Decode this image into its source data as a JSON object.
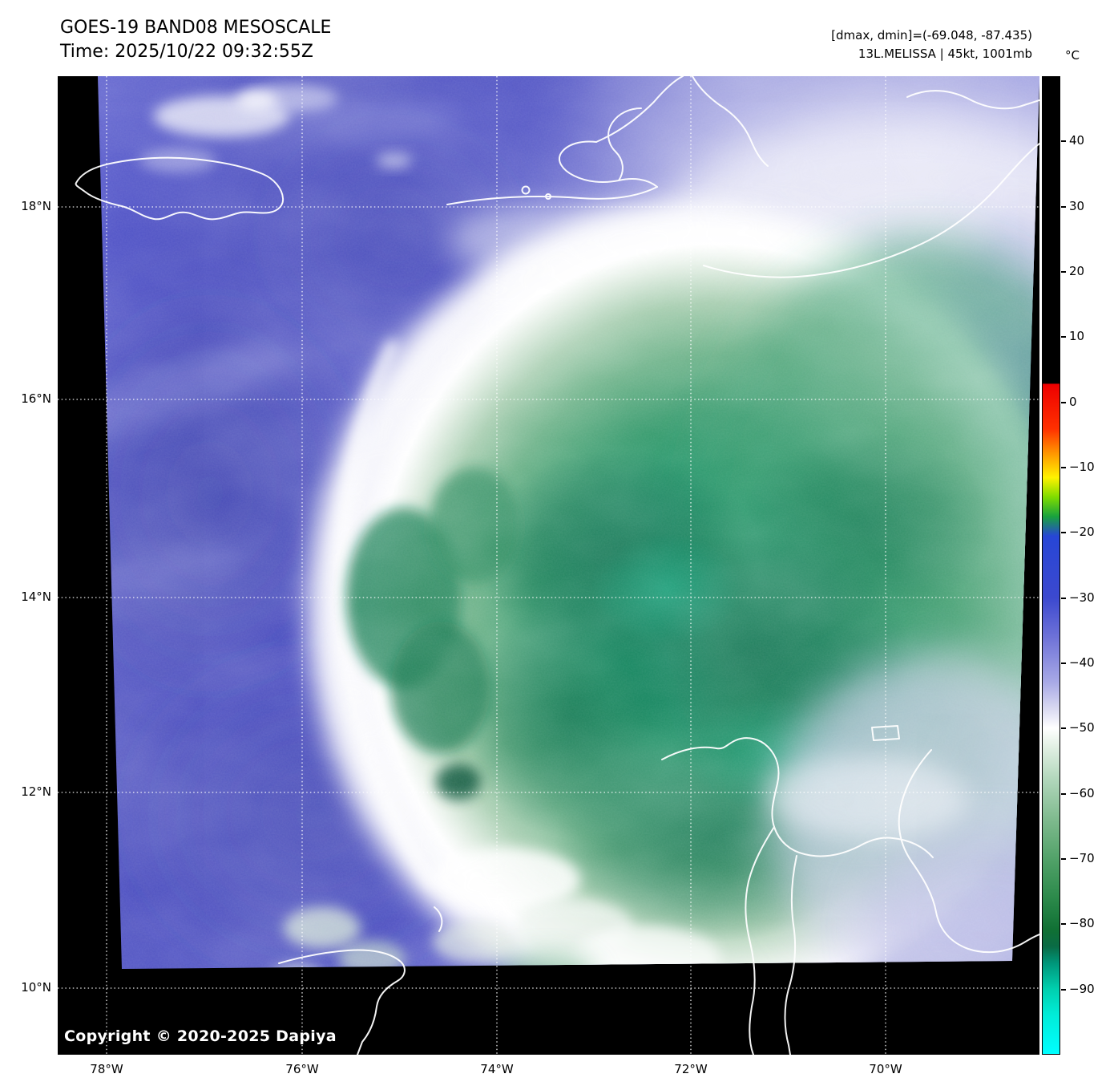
{
  "header": {
    "title": "GOES-19 BAND08 MESOSCALE",
    "time": "Time: 2025/10/22 09:32:55Z",
    "range_note": "[dmax, dmin]=(-69.048, -87.435)",
    "storm_note": "13L.MELISSA | 45kt, 1001mb"
  },
  "footer": {
    "copyright": "Copyright © 2020-2025 Dapiya"
  },
  "axes": {
    "lat_labels": [
      "18°N",
      "16°N",
      "14°N",
      "12°N",
      "10°N"
    ],
    "lon_labels": [
      "78°W",
      "76°W",
      "74°W",
      "72°W",
      "70°W"
    ]
  },
  "colorbar": {
    "unit_label": "°C",
    "domain": [
      50,
      -100
    ],
    "ticks": [
      {
        "label": "40",
        "value": 40
      },
      {
        "label": "30",
        "value": 30
      },
      {
        "label": "20",
        "value": 20
      },
      {
        "label": "10",
        "value": 10
      },
      {
        "label": "0",
        "value": 0
      },
      {
        "label": "−10",
        "value": -10
      },
      {
        "label": "−20",
        "value": -20
      },
      {
        "label": "−30",
        "value": -30
      },
      {
        "label": "−40",
        "value": -40
      },
      {
        "label": "−50",
        "value": -50
      },
      {
        "label": "−60",
        "value": -60
      },
      {
        "label": "−70",
        "value": -70
      },
      {
        "label": "−80",
        "value": -80
      },
      {
        "label": "−90",
        "value": -90
      }
    ],
    "stops": [
      {
        "value": 50,
        "color": "#000000"
      },
      {
        "value": 3,
        "color": "#000000"
      },
      {
        "value": 2.8,
        "color": "#ee0000"
      },
      {
        "value": -4,
        "color": "#ff3000"
      },
      {
        "value": -8,
        "color": "#ff9c00"
      },
      {
        "value": -11.5,
        "color": "#fff200"
      },
      {
        "value": -14.5,
        "color": "#7fdc00"
      },
      {
        "value": -17.5,
        "color": "#18a23e"
      },
      {
        "value": -20.5,
        "color": "#2746d6"
      },
      {
        "value": -30,
        "color": "#3c49cf"
      },
      {
        "value": -36,
        "color": "#6e72d8"
      },
      {
        "value": -43,
        "color": "#a9aae6"
      },
      {
        "value": -47,
        "color": "#d9d9f1"
      },
      {
        "value": -50,
        "color": "#ffffff"
      },
      {
        "value": -53,
        "color": "#e0efe2"
      },
      {
        "value": -58,
        "color": "#b0d6ba"
      },
      {
        "value": -64,
        "color": "#7fba8e"
      },
      {
        "value": -70,
        "color": "#52a269"
      },
      {
        "value": -76,
        "color": "#2c8a4b"
      },
      {
        "value": -81,
        "color": "#107034"
      },
      {
        "value": -83.5,
        "color": "#0a6b45"
      },
      {
        "value": -86,
        "color": "#009579"
      },
      {
        "value": -90,
        "color": "#00cfae"
      },
      {
        "value": -94,
        "color": "#00ecd8"
      },
      {
        "value": -100,
        "color": "#00ffff"
      }
    ]
  }
}
